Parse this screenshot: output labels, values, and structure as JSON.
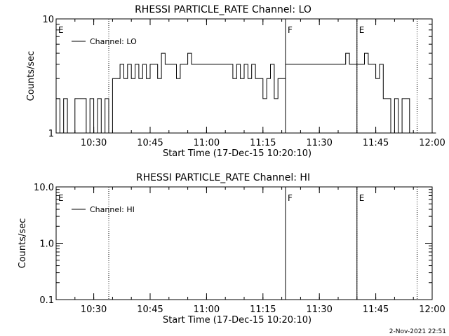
{
  "footer": {
    "timestamp": "2-Nov-2021 22:51"
  },
  "chart_data": [
    {
      "type": "line",
      "title": "RHESSI PARTICLE_RATE Channel: LO",
      "xlabel": "Start Time (17-Dec-15 10:20:10)",
      "ylabel": "Counts/sec",
      "y_scale": "log",
      "ylim": [
        1,
        10
      ],
      "xlim": [
        "10:20",
        "12:00"
      ],
      "x_ticks": [
        "10:30",
        "10:45",
        "11:00",
        "11:15",
        "11:30",
        "11:45",
        "12:00"
      ],
      "y_ticks": [
        "1",
        "10"
      ],
      "legend": {
        "entries": [
          "Channel: LO"
        ],
        "position": "top-left"
      },
      "markers": [
        {
          "label": "E",
          "time": "10:20",
          "style": "dotted"
        },
        {
          "label": "",
          "time": "10:34",
          "style": "dotted"
        },
        {
          "label": "F",
          "time": "11:21",
          "style": "solid"
        },
        {
          "label": "",
          "time": "11:40",
          "style": "solid"
        },
        {
          "label": "E",
          "time": "11:40",
          "style": "dotted"
        },
        {
          "label": "",
          "time": "11:56",
          "style": "dotted"
        }
      ],
      "series": [
        {
          "name": "Channel: LO",
          "x": [
            "10:20",
            "10:21",
            "10:22",
            "10:23",
            "10:24",
            "10:25",
            "10:26",
            "10:27",
            "10:28",
            "10:29",
            "10:30",
            "10:31",
            "10:32",
            "10:33",
            "10:34",
            "10:35",
            "10:36",
            "10:37",
            "10:38",
            "10:39",
            "10:40",
            "10:41",
            "10:42",
            "10:43",
            "10:44",
            "10:45",
            "10:46",
            "10:47",
            "10:48",
            "10:49",
            "10:50",
            "10:51",
            "10:52",
            "10:53",
            "10:54",
            "10:55",
            "10:56",
            "10:57",
            "10:58",
            "10:59",
            "11:00",
            "11:01",
            "11:02",
            "11:03",
            "11:04",
            "11:05",
            "11:06",
            "11:07",
            "11:08",
            "11:09",
            "11:10",
            "11:11",
            "11:12",
            "11:13",
            "11:14",
            "11:15",
            "11:16",
            "11:17",
            "11:18",
            "11:19",
            "11:20",
            "11:21",
            "11:22",
            "11:23",
            "11:24",
            "11:25",
            "11:26",
            "11:27",
            "11:28",
            "11:29",
            "11:30",
            "11:31",
            "11:32",
            "11:33",
            "11:34",
            "11:35",
            "11:36",
            "11:37",
            "11:38",
            "11:39",
            "11:40",
            "11:41",
            "11:42",
            "11:43",
            "11:44",
            "11:45",
            "11:46",
            "11:47",
            "11:48",
            "11:49",
            "11:50",
            "11:51",
            "11:52",
            "11:53",
            "11:54",
            "11:55",
            "11:56",
            "11:57",
            "11:58",
            "11:59",
            "12:00"
          ],
          "values": [
            2,
            1,
            2,
            1,
            1,
            2,
            2,
            2,
            1,
            2,
            1,
            2,
            1,
            2,
            1,
            3,
            3,
            4,
            3,
            4,
            3,
            4,
            3,
            4,
            3,
            4,
            4,
            3,
            5,
            4,
            4,
            4,
            3,
            4,
            4,
            5,
            4,
            4,
            4,
            4,
            4,
            4,
            4,
            4,
            4,
            4,
            4,
            3,
            4,
            3,
            4,
            3,
            4,
            3,
            3,
            2,
            3,
            4,
            2,
            3,
            3,
            4,
            4,
            4,
            4,
            4,
            4,
            4,
            4,
            4,
            4,
            4,
            4,
            4,
            4,
            4,
            4,
            5,
            4,
            4,
            4,
            4,
            5,
            4,
            4,
            3,
            4,
            2,
            2,
            1,
            2,
            1,
            2,
            2,
            1,
            1,
            1,
            1,
            1,
            1,
            1
          ]
        }
      ]
    },
    {
      "type": "line",
      "title": "RHESSI PARTICLE_RATE Channel: HI",
      "xlabel": "Start Time (17-Dec-15 10:20:10)",
      "ylabel": "Counts/sec",
      "y_scale": "log",
      "ylim": [
        0.1,
        10
      ],
      "xlim": [
        "10:20",
        "12:00"
      ],
      "x_ticks": [
        "10:30",
        "10:45",
        "11:00",
        "11:15",
        "11:30",
        "11:45",
        "12:00"
      ],
      "y_ticks": [
        "0.1",
        "1.0",
        "10.0"
      ],
      "legend": {
        "entries": [
          "Channel: HI"
        ],
        "position": "top-left"
      },
      "markers": [
        {
          "label": "E",
          "time": "10:20",
          "style": "dotted"
        },
        {
          "label": "",
          "time": "10:34",
          "style": "dotted"
        },
        {
          "label": "F",
          "time": "11:21",
          "style": "solid"
        },
        {
          "label": "",
          "time": "11:40",
          "style": "solid"
        },
        {
          "label": "E",
          "time": "11:40",
          "style": "dotted"
        },
        {
          "label": "",
          "time": "11:56",
          "style": "dotted"
        }
      ],
      "series": [
        {
          "name": "Channel: HI",
          "x": [],
          "values": []
        }
      ]
    }
  ]
}
